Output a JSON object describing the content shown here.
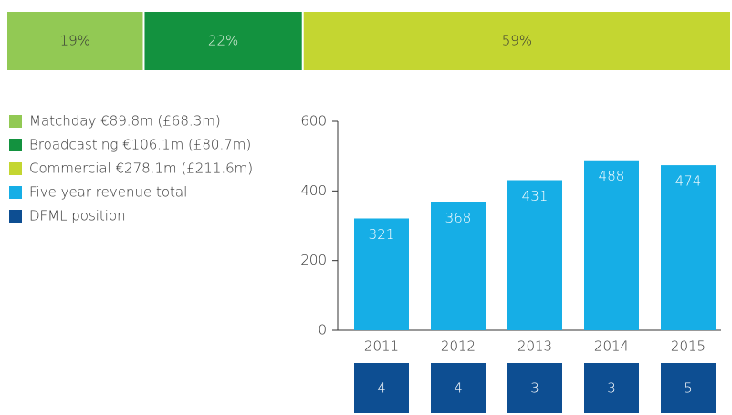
{
  "chart_data": [
    {
      "type": "stacked_bar_100",
      "series": [
        {
          "name": "Matchday €89.8m (£68.3m)",
          "color": "#92c954",
          "label_color": "#333333",
          "values": [
            19
          ],
          "value_labels": [
            "19%"
          ]
        },
        {
          "name": "Broadcasting €106.1m (£80.7m)",
          "color": "#13923f",
          "label_color": "#dff0df",
          "values": [
            22
          ],
          "value_labels": [
            "22%"
          ]
        },
        {
          "name": "Commercial €278.1m (£211.6m)",
          "color": "#c4d631",
          "label_color": "#333333",
          "values": [
            59
          ],
          "value_labels": [
            "59%"
          ]
        }
      ]
    },
    {
      "type": "bar",
      "categories": [
        "2011",
        "2012",
        "2013",
        "2014",
        "2015"
      ],
      "series": [
        {
          "name": "Five year revenue total",
          "color": "#16aee6",
          "values": [
            321,
            368,
            431,
            488,
            474
          ]
        },
        {
          "name": "DFML position",
          "color": "#0d4e92",
          "values": [
            4,
            4,
            3,
            3,
            5
          ]
        }
      ],
      "ylim": [
        0,
        600
      ],
      "yticks": [
        0,
        200,
        400,
        600
      ]
    }
  ]
}
